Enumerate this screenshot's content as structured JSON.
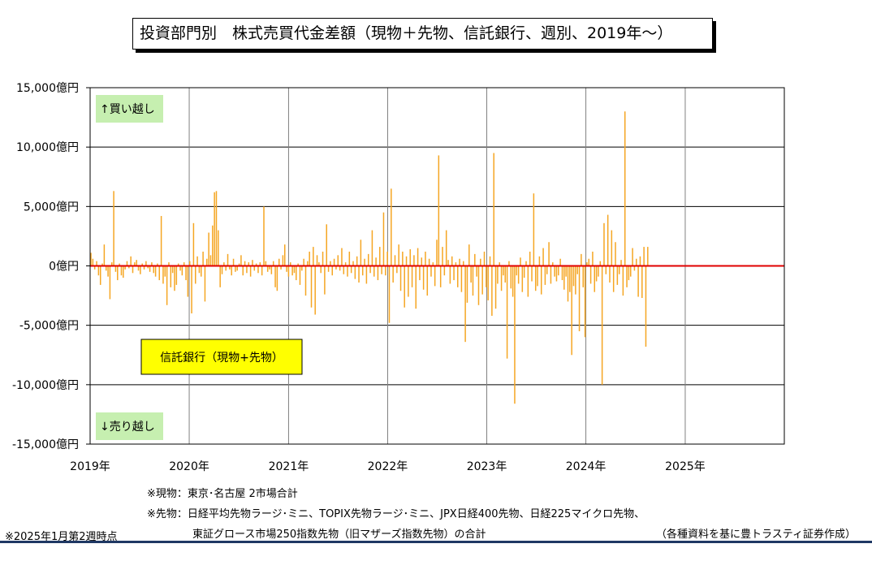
{
  "title": "投資部門別　株式売買代金差額（現物＋先物、信託銀行、週別、2019年～）",
  "chart_data": {
    "type": "bar",
    "title": "投資部門別　株式売買代金差額（現物＋先物、信託銀行、週別、2019年～）",
    "ylabel": "",
    "xlabel": "",
    "ylim": [
      -15000,
      15000
    ],
    "xlim": [
      "2019-01-01",
      "2026-01-01"
    ],
    "y_ticks": [
      "15,000億円",
      "10,000億円",
      "5,000億円",
      "0億円",
      "-5,000億円",
      "-10,000億円",
      "-15,000億円"
    ],
    "x_ticks": [
      "2019年",
      "2020年",
      "2021年",
      "2022年",
      "2023年",
      "2024年",
      "2025年"
    ],
    "grid": true,
    "legend_label": "信託銀行（現物+先物）",
    "annotation_buy": "↑買い越し",
    "annotation_sell": "↓売り越し",
    "colors": {
      "bar": "#f5a623",
      "zero_line": "#e00000",
      "legend_bg": "#ffff00",
      "annotation_bg": "#c6efb0",
      "grid": "#000000"
    },
    "series": [
      {
        "name": "信託銀行（現物+先物）",
        "values": [
          1100,
          600,
          -300,
          400,
          -800,
          -1600,
          200,
          1800,
          -400,
          -900,
          -2800,
          300,
          6300,
          -500,
          -1200,
          200,
          -800,
          -1000,
          -300,
          400,
          -200,
          800,
          -600,
          300,
          500,
          -400,
          -700,
          200,
          -300,
          400,
          -200,
          -500,
          300,
          -600,
          -900,
          200,
          -1200,
          4200,
          -1500,
          -900,
          -3300,
          300,
          -1800,
          -600,
          -2100,
          -1600,
          200,
          -400,
          -800,
          300,
          -1200,
          -2600,
          400,
          -4000,
          3600,
          -1500,
          800,
          -600,
          -900,
          1200,
          -3000,
          600,
          2800,
          900,
          3400,
          6200,
          6300,
          3000,
          -1800,
          -700,
          300,
          -400,
          1000,
          -300,
          -800,
          600,
          -500,
          -400,
          200,
          900,
          -800,
          400,
          -600,
          300,
          -900,
          500,
          -400,
          200,
          -600,
          300,
          -800,
          5000,
          400,
          -500,
          -300,
          -700,
          400,
          -1800,
          -2100,
          600,
          -300,
          900,
          1800,
          -500,
          -900,
          300,
          -800,
          -600,
          -1200,
          200,
          -1600,
          -400,
          600,
          -2500,
          400,
          1200,
          -3500,
          1600,
          -4100,
          900,
          300,
          -600,
          1200,
          -2400,
          3500,
          -500,
          400,
          -800,
          600,
          -300,
          900,
          -400,
          1500,
          -700,
          300,
          -900,
          1200,
          -600,
          400,
          -1100,
          800,
          -1400,
          2200,
          -800,
          600,
          -1500,
          1000,
          -600,
          3000,
          -900,
          700,
          -1200,
          1600,
          -700,
          4500,
          -800,
          1200,
          -4800,
          6500,
          -1400,
          900,
          -600,
          1800,
          -2100,
          1200,
          -3500,
          800,
          -2600,
          1400,
          -1800,
          900,
          -3600,
          1500,
          -1200,
          700,
          -2000,
          1200,
          -2500,
          600,
          -900,
          300,
          -1700,
          2200,
          9300,
          -1800,
          1600,
          -800,
          3000,
          500,
          -1500,
          800,
          -1200,
          300,
          -1800,
          600,
          -2200,
          400,
          -6400,
          -3100,
          1800,
          -1400,
          -2500,
          1000,
          -900,
          -3300,
          600,
          -2400,
          1200,
          -1800,
          -2900,
          800,
          -4200,
          9500,
          -3600,
          -1500,
          300,
          -2100,
          -800,
          -1400,
          -7800,
          400,
          -1900,
          -2600,
          -11600,
          -800,
          -1500,
          700,
          -2200,
          -1000,
          400,
          -2600,
          1200,
          -1300,
          6100,
          -2100,
          -1700,
          800,
          -2400,
          1500,
          -1600,
          -700,
          2000,
          -1500,
          300,
          -900,
          -1300,
          -800,
          600,
          -1200,
          -2000,
          -900,
          -3000,
          -2200,
          -7500,
          -1700,
          -2400,
          -700,
          -5500,
          1000,
          -1800,
          -6000,
          300,
          600,
          -1500,
          1200,
          -2200,
          -1300,
          -900,
          400,
          -10000,
          3600,
          -700,
          4300,
          -1400,
          3000,
          -2200,
          2000,
          -1600,
          -700,
          500,
          -2500,
          13000,
          -1800,
          -1200,
          -900,
          1500,
          -400,
          600,
          -2600,
          800,
          -2700,
          1600,
          -6800,
          1600
        ]
      }
    ]
  },
  "notes": {
    "line1": "※現物：東京･名古屋 2市場合計",
    "line2": "※先物：日経平均先物ラージ･ミニ、TOPIX先物ラージ･ミニ、JPX日経400先物、日経225マイクロ先物、",
    "line3": "東証グロース市場250指数先物（旧マザーズ指数先物）の合計",
    "asof": "※2025年1月第2週時点",
    "source": "（各種資料を基に豊トラスティ証券作成）"
  }
}
